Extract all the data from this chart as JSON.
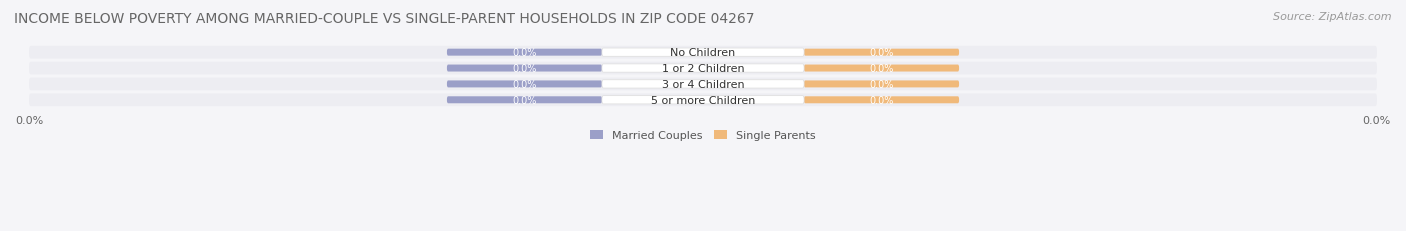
{
  "title": "INCOME BELOW POVERTY AMONG MARRIED-COUPLE VS SINGLE-PARENT HOUSEHOLDS IN ZIP CODE 04267",
  "source": "Source: ZipAtlas.com",
  "categories": [
    "No Children",
    "1 or 2 Children",
    "3 or 4 Children",
    "5 or more Children"
  ],
  "married_values": [
    0.0,
    0.0,
    0.0,
    0.0
  ],
  "single_values": [
    0.0,
    0.0,
    0.0,
    0.0
  ],
  "married_color": "#9b9fc8",
  "single_color": "#f0b97a",
  "row_bg_color": "#ededf2",
  "label_bg_color": "#ffffff",
  "title_fontsize": 10,
  "source_fontsize": 8,
  "tick_fontsize": 8,
  "legend_fontsize": 8,
  "bar_label_fontsize": 7,
  "category_fontsize": 8,
  "background_color": "#f5f5f8"
}
